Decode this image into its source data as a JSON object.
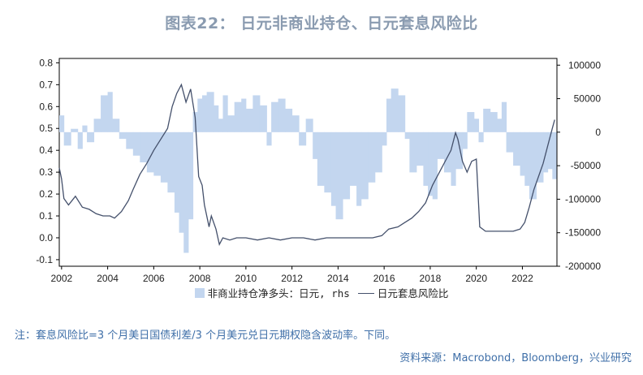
{
  "title": "图表22： 日元非商业持仓、日元套息风险比",
  "note": "注：套息风险比=3 个月美日国债利差/3 个月美元兑日元期权隐含波动率。下同。",
  "source": "资料来源：Macrobond，Bloomberg，兴业研究",
  "legend": {
    "bar_label": "非商业持仓净多头：日元, rhs",
    "line_label": "日元套息风险比"
  },
  "colors": {
    "bars": "#c3d6ef",
    "line": "#44506b",
    "title": "#8a9bb0",
    "footnote": "#3f6fa8"
  },
  "chart_data": {
    "type": "bar+line",
    "x_ticks": [
      "2002",
      "2004",
      "2006",
      "2008",
      "2010",
      "2012",
      "2014",
      "2016",
      "2018",
      "2020",
      "2022"
    ],
    "x_range": [
      2001.9,
      2023.5
    ],
    "y_left": {
      "range": [
        -0.13,
        0.82
      ],
      "ticks": [
        "-0.1",
        "0.0",
        "0.1",
        "0.2",
        "0.3",
        "0.4",
        "0.5",
        "0.6",
        "0.7",
        "0.8"
      ]
    },
    "y_right": {
      "range": [
        -200000,
        110000
      ],
      "ticks": [
        "-200000",
        "-150000",
        "-100000",
        "-50000",
        "0",
        "50000",
        "100000"
      ]
    },
    "grid": false,
    "legend_position": "bottom",
    "series": [
      {
        "name": "非商业持仓净多头：日元, rhs",
        "type": "bar",
        "axis": "right",
        "points": [
          [
            2001.9,
            25000
          ],
          [
            2002.1,
            -20000
          ],
          [
            2002.4,
            5000
          ],
          [
            2002.7,
            -25000
          ],
          [
            2002.9,
            10000
          ],
          [
            2003.1,
            -15000
          ],
          [
            2003.4,
            20000
          ],
          [
            2003.7,
            55000
          ],
          [
            2004.0,
            60000
          ],
          [
            2004.2,
            20000
          ],
          [
            2004.5,
            -10000
          ],
          [
            2004.8,
            -25000
          ],
          [
            2005.1,
            -35000
          ],
          [
            2005.4,
            -45000
          ],
          [
            2005.7,
            -60000
          ],
          [
            2006.0,
            -65000
          ],
          [
            2006.3,
            -75000
          ],
          [
            2006.6,
            -90000
          ],
          [
            2006.9,
            -120000
          ],
          [
            2007.1,
            -150000
          ],
          [
            2007.3,
            -180000
          ],
          [
            2007.5,
            -130000
          ],
          [
            2007.7,
            30000
          ],
          [
            2007.9,
            50000
          ],
          [
            2008.1,
            55000
          ],
          [
            2008.3,
            60000
          ],
          [
            2008.6,
            40000
          ],
          [
            2008.8,
            20000
          ],
          [
            2009.0,
            55000
          ],
          [
            2009.2,
            25000
          ],
          [
            2009.5,
            45000
          ],
          [
            2009.8,
            50000
          ],
          [
            2010.0,
            35000
          ],
          [
            2010.3,
            55000
          ],
          [
            2010.6,
            40000
          ],
          [
            2010.9,
            -20000
          ],
          [
            2011.1,
            45000
          ],
          [
            2011.4,
            50000
          ],
          [
            2011.7,
            35000
          ],
          [
            2012.0,
            25000
          ],
          [
            2012.3,
            -20000
          ],
          [
            2012.6,
            20000
          ],
          [
            2012.9,
            -40000
          ],
          [
            2013.1,
            -80000
          ],
          [
            2013.4,
            -90000
          ],
          [
            2013.7,
            -110000
          ],
          [
            2013.9,
            -130000
          ],
          [
            2014.2,
            -100000
          ],
          [
            2014.5,
            -80000
          ],
          [
            2014.8,
            -110000
          ],
          [
            2015.0,
            -100000
          ],
          [
            2015.3,
            -75000
          ],
          [
            2015.6,
            -60000
          ],
          [
            2015.9,
            -20000
          ],
          [
            2016.1,
            50000
          ],
          [
            2016.3,
            65000
          ],
          [
            2016.6,
            55000
          ],
          [
            2016.9,
            -10000
          ],
          [
            2017.1,
            -60000
          ],
          [
            2017.4,
            -50000
          ],
          [
            2017.7,
            -80000
          ],
          [
            2017.9,
            -95000
          ],
          [
            2018.1,
            -100000
          ],
          [
            2018.3,
            -40000
          ],
          [
            2018.6,
            -60000
          ],
          [
            2018.9,
            -80000
          ],
          [
            2019.1,
            -55000
          ],
          [
            2019.4,
            -25000
          ],
          [
            2019.6,
            30000
          ],
          [
            2019.9,
            20000
          ],
          [
            2020.1,
            -15000
          ],
          [
            2020.3,
            35000
          ],
          [
            2020.6,
            30000
          ],
          [
            2020.9,
            20000
          ],
          [
            2021.1,
            45000
          ],
          [
            2021.3,
            -30000
          ],
          [
            2021.6,
            -50000
          ],
          [
            2021.9,
            -65000
          ],
          [
            2022.1,
            -80000
          ],
          [
            2022.3,
            -100000
          ],
          [
            2022.6,
            -75000
          ],
          [
            2022.9,
            -60000
          ],
          [
            2023.1,
            -55000
          ],
          [
            2023.3,
            -70000
          ]
        ]
      },
      {
        "name": "日元套息风险比",
        "type": "line",
        "axis": "left",
        "points": [
          [
            2001.9,
            0.32
          ],
          [
            2002.0,
            0.27
          ],
          [
            2002.1,
            0.18
          ],
          [
            2002.3,
            0.15
          ],
          [
            2002.6,
            0.19
          ],
          [
            2002.9,
            0.14
          ],
          [
            2003.2,
            0.13
          ],
          [
            2003.5,
            0.11
          ],
          [
            2003.8,
            0.1
          ],
          [
            2004.1,
            0.1
          ],
          [
            2004.3,
            0.09
          ],
          [
            2004.6,
            0.12
          ],
          [
            2004.9,
            0.17
          ],
          [
            2005.1,
            0.22
          ],
          [
            2005.4,
            0.29
          ],
          [
            2005.7,
            0.34
          ],
          [
            2006.0,
            0.4
          ],
          [
            2006.3,
            0.45
          ],
          [
            2006.6,
            0.5
          ],
          [
            2006.8,
            0.6
          ],
          [
            2007.0,
            0.66
          ],
          [
            2007.2,
            0.7
          ],
          [
            2007.4,
            0.62
          ],
          [
            2007.6,
            0.68
          ],
          [
            2007.8,
            0.55
          ],
          [
            2007.95,
            0.28
          ],
          [
            2008.1,
            0.24
          ],
          [
            2008.2,
            0.15
          ],
          [
            2008.4,
            0.05
          ],
          [
            2008.5,
            0.1
          ],
          [
            2008.7,
            0.04
          ],
          [
            2008.85,
            -0.03
          ],
          [
            2009.0,
            0.0
          ],
          [
            2009.3,
            -0.01
          ],
          [
            2009.6,
            0.0
          ],
          [
            2010.0,
            0.0
          ],
          [
            2010.5,
            -0.01
          ],
          [
            2011.0,
            0.0
          ],
          [
            2011.5,
            -0.01
          ],
          [
            2012.0,
            0.0
          ],
          [
            2012.5,
            0.0
          ],
          [
            2013.0,
            -0.01
          ],
          [
            2013.5,
            0.0
          ],
          [
            2014.0,
            0.0
          ],
          [
            2014.5,
            0.0
          ],
          [
            2015.0,
            0.0
          ],
          [
            2015.5,
            0.0
          ],
          [
            2015.9,
            0.01
          ],
          [
            2016.2,
            0.04
          ],
          [
            2016.6,
            0.05
          ],
          [
            2016.9,
            0.07
          ],
          [
            2017.2,
            0.09
          ],
          [
            2017.5,
            0.12
          ],
          [
            2017.8,
            0.16
          ],
          [
            2018.1,
            0.24
          ],
          [
            2018.4,
            0.3
          ],
          [
            2018.7,
            0.36
          ],
          [
            2018.9,
            0.4
          ],
          [
            2019.1,
            0.48
          ],
          [
            2019.2,
            0.45
          ],
          [
            2019.4,
            0.35
          ],
          [
            2019.6,
            0.3
          ],
          [
            2019.8,
            0.35
          ],
          [
            2020.0,
            0.36
          ],
          [
            2020.15,
            0.05
          ],
          [
            2020.4,
            0.03
          ],
          [
            2020.8,
            0.03
          ],
          [
            2021.2,
            0.03
          ],
          [
            2021.6,
            0.03
          ],
          [
            2021.9,
            0.04
          ],
          [
            2022.1,
            0.07
          ],
          [
            2022.3,
            0.14
          ],
          [
            2022.5,
            0.22
          ],
          [
            2022.7,
            0.28
          ],
          [
            2022.9,
            0.34
          ],
          [
            2023.1,
            0.42
          ],
          [
            2023.3,
            0.5
          ],
          [
            2023.4,
            0.54
          ]
        ]
      }
    ]
  }
}
